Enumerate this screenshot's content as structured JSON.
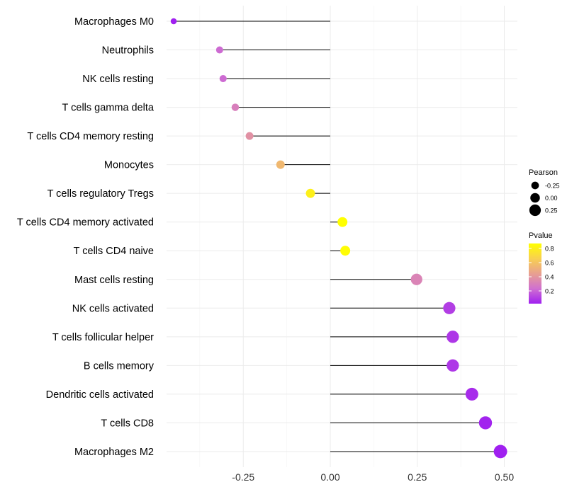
{
  "chart_data": {
    "type": "lollipop",
    "xlabel": "",
    "ylabel": "",
    "xlim": [
      -0.48,
      0.52
    ],
    "x_ticks": [
      -0.25,
      0,
      0.25,
      0.5
    ],
    "x_tick_labels": [
      "-0.25",
      "0.00",
      "0.25",
      "0.50"
    ],
    "grid": true,
    "categories": [
      "Macrophages M0",
      "Neutrophils",
      "NK cells resting",
      "T cells gamma delta",
      "T cells CD4 memory resting",
      "Monocytes",
      "T cells regulatory  Tregs",
      "T cells CD4 memory activated",
      "T cells CD4 naive",
      "Mast cells resting",
      "NK cells activated",
      "T cells follicular helper",
      "B cells memory",
      "Dendritic cells activated",
      "T cells CD8",
      "Macrophages M2"
    ],
    "pearson": [
      -0.45,
      -0.318,
      -0.308,
      -0.273,
      -0.232,
      -0.143,
      -0.057,
      0.035,
      0.043,
      0.248,
      0.342,
      0.352,
      0.352,
      0.407,
      0.446,
      0.489
    ],
    "pvalue": [
      0.02,
      0.22,
      0.22,
      0.3,
      0.38,
      0.55,
      0.8,
      0.87,
      0.86,
      0.32,
      0.1,
      0.08,
      0.08,
      0.05,
      0.03,
      0.01
    ],
    "legend": {
      "placement": "right",
      "size_title": "Pearson",
      "size_breaks": [
        -0.25,
        0,
        0.25
      ],
      "size_labels": [
        "-0.25",
        "0.00",
        "0.25"
      ],
      "color_title": "Pvalue",
      "color_breaks": [
        0.2,
        0.4,
        0.6,
        0.8
      ],
      "color_labels": [
        "0.2",
        "0.4",
        "0.6",
        "0.8"
      ],
      "color_range": [
        0.02,
        0.87
      ],
      "colors": [
        "#a020f0",
        "#d070d0",
        "#e8a090",
        "#f8d050",
        "#ffff00"
      ]
    }
  }
}
